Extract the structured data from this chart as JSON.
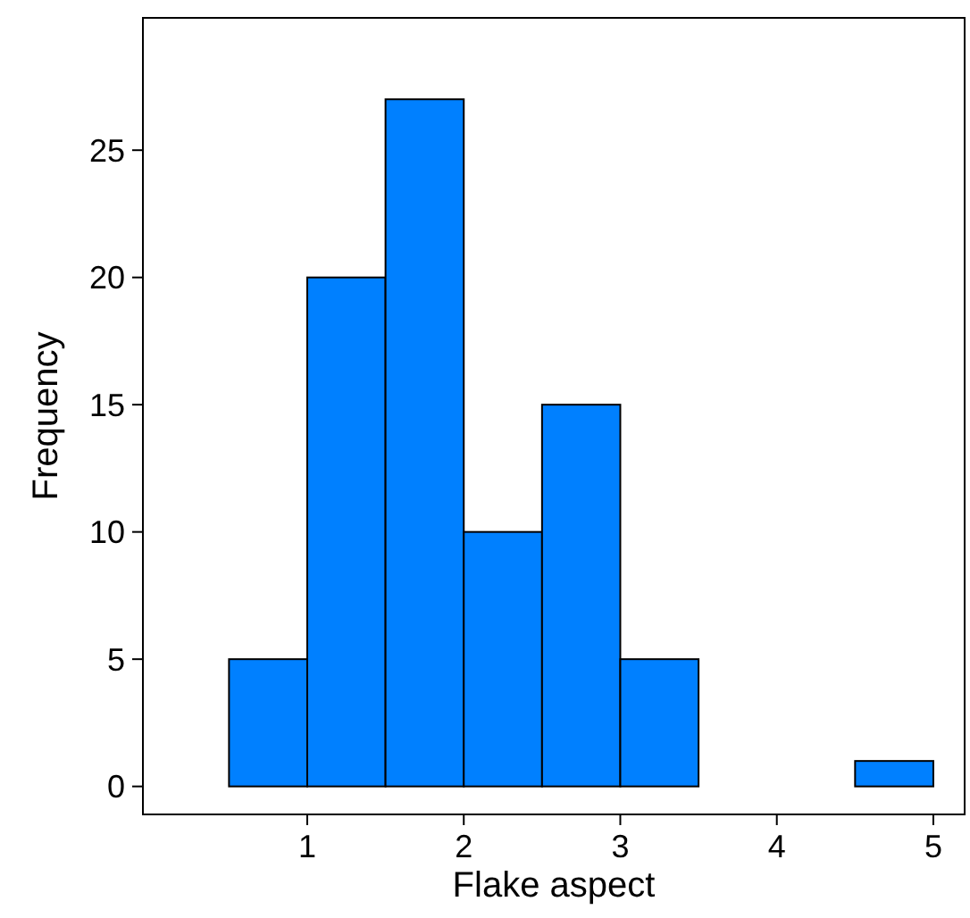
{
  "chart_data": {
    "type": "histogram",
    "xlabel": "Flake aspect",
    "ylabel": "Frequency",
    "bins": [
      0.5,
      1,
      1.5,
      2,
      2.5,
      3,
      3.5,
      4,
      4.5,
      5
    ],
    "values": [
      5,
      20,
      27,
      10,
      15,
      5,
      0,
      0,
      1
    ],
    "color": "#0080ff",
    "xlim": [
      -0.05,
      5.2
    ],
    "ylim": [
      -1.1,
      30.2
    ],
    "xticks": [
      1,
      2,
      3,
      4,
      5
    ],
    "yticks": [
      0,
      5,
      10,
      15,
      20,
      25
    ],
    "grid": false
  }
}
